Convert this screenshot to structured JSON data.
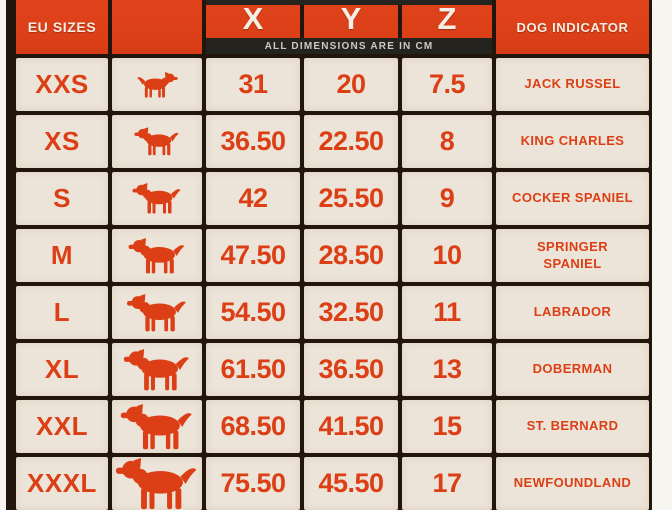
{
  "header": {
    "eu_sizes_label": "EU SIZES",
    "dim_columns": [
      "X",
      "Y",
      "Z"
    ],
    "dimensions_note": "ALL DIMENSIONS ARE IN CM",
    "dog_indicator_label": "DOG INDICATOR"
  },
  "colors": {
    "orange_background": "#dc4018",
    "cell_cream": "#ece4d8",
    "text_orange": "#dc3f15",
    "grid_dark": "#22150c",
    "note_band_black": "#24231e",
    "header_text_white": "#f4eee4",
    "photo_margin_white": "#f7f5f0"
  },
  "rows": [
    {
      "size": "XXS",
      "x": "31",
      "y": "20",
      "z": "7.5",
      "breed": "JACK RUSSEL",
      "dog_icon": "jack-russel-silhouette"
    },
    {
      "size": "XS",
      "x": "36.50",
      "y": "22.50",
      "z": "8",
      "breed": "KING CHARLES",
      "dog_icon": "king-charles-silhouette"
    },
    {
      "size": "S",
      "x": "42",
      "y": "25.50",
      "z": "9",
      "breed": "COCKER SPANIEL",
      "dog_icon": "cocker-spaniel-silhouette"
    },
    {
      "size": "M",
      "x": "47.50",
      "y": "28.50",
      "z": "10",
      "breed": "SPRINGER SPANIEL",
      "dog_icon": "springer-spaniel-silhouette"
    },
    {
      "size": "L",
      "x": "54.50",
      "y": "32.50",
      "z": "11",
      "breed": "LABRADOR",
      "dog_icon": "labrador-silhouette"
    },
    {
      "size": "XL",
      "x": "61.50",
      "y": "36.50",
      "z": "13",
      "breed": "DOBERMAN",
      "dog_icon": "doberman-silhouette"
    },
    {
      "size": "XXL",
      "x": "68.50",
      "y": "41.50",
      "z": "15",
      "breed": "ST. BERNARD",
      "dog_icon": "st-bernard-silhouette"
    },
    {
      "size": "XXXL",
      "x": "75.50",
      "y": "45.50",
      "z": "17",
      "breed": "NEWFOUNDLAND",
      "dog_icon": "newfoundland-silhouette"
    }
  ]
}
